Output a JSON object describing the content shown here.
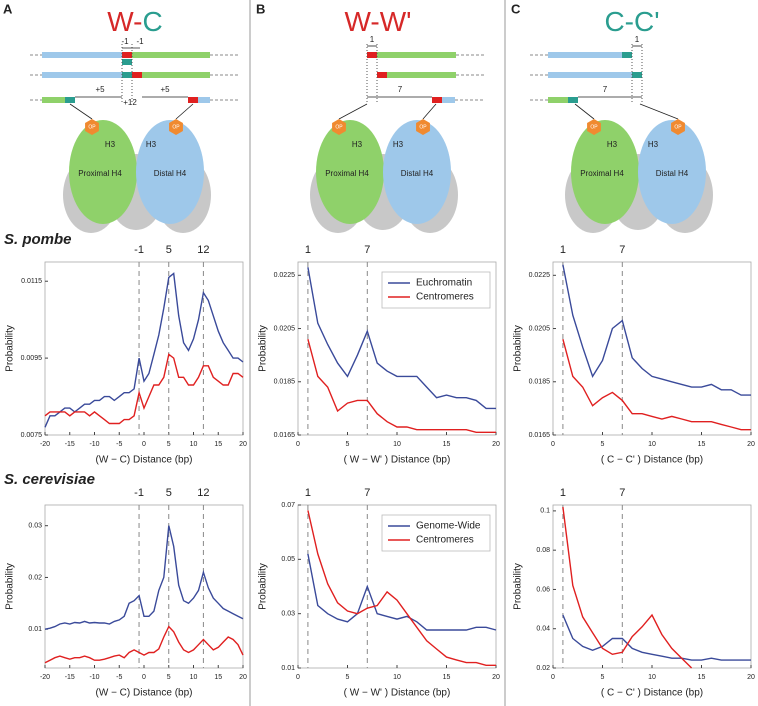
{
  "panels": [
    {
      "letter": "A",
      "title": [
        {
          "text": "W",
          "color": "#d62828"
        },
        {
          "text": "-",
          "color": "#d62828"
        },
        {
          "text": "C",
          "color": "#2a9d8f"
        }
      ],
      "diagram_labels": [
        "-1",
        "-1",
        "+5",
        "+12",
        "+5",
        "OP",
        "OP",
        "H3",
        "H3",
        "Proximal H4",
        "Distal H4"
      ]
    },
    {
      "letter": "B",
      "title": [
        {
          "text": "W-W'",
          "color": "#d62828"
        }
      ],
      "diagram_labels": [
        "1",
        "7",
        "OP",
        "OP",
        "H3",
        "H3",
        "Proximal H4",
        "Distal H4"
      ]
    },
    {
      "letter": "C",
      "title": [
        {
          "text": "C-C'",
          "color": "#2a9d8f"
        }
      ],
      "diagram_labels": [
        "1",
        "7",
        "OP",
        "OP",
        "H3",
        "H3",
        "Proximal H4",
        "Distal H4"
      ]
    }
  ],
  "organisms": [
    "S. pombe",
    "S. cerevisiae"
  ],
  "chart_data": [
    {
      "type": "line",
      "x": [
        -20,
        -19,
        -18,
        -17,
        -16,
        -15,
        -14,
        -13,
        -12,
        -11,
        -10,
        -9,
        -8,
        -7,
        -6,
        -5,
        -4,
        -3,
        -2,
        -1,
        0,
        1,
        2,
        3,
        4,
        5,
        6,
        7,
        8,
        9,
        10,
        11,
        12,
        13,
        14,
        15,
        16,
        17,
        18,
        19,
        20
      ],
      "series": [
        {
          "color": "#3a4a9a",
          "values": [
            0.0077,
            0.008,
            0.008,
            0.0081,
            0.0082,
            0.0082,
            0.0081,
            0.0082,
            0.0083,
            0.0083,
            0.0084,
            0.0084,
            0.0085,
            0.0085,
            0.0084,
            0.0085,
            0.0086,
            0.0086,
            0.0087,
            0.0095,
            0.0089,
            0.0091,
            0.0096,
            0.0101,
            0.0108,
            0.0116,
            0.0117,
            0.0106,
            0.0099,
            0.0097,
            0.01,
            0.0105,
            0.0112,
            0.011,
            0.0106,
            0.0102,
            0.0099,
            0.0097,
            0.0095,
            0.0095,
            0.0094
          ]
        },
        {
          "color": "#e02020",
          "values": [
            0.008,
            0.0081,
            0.0081,
            0.0081,
            0.0081,
            0.008,
            0.0081,
            0.0081,
            0.0081,
            0.008,
            0.0081,
            0.008,
            0.0079,
            0.0078,
            0.0078,
            0.0078,
            0.0079,
            0.0079,
            0.008,
            0.0086,
            0.0082,
            0.0085,
            0.0088,
            0.0088,
            0.009,
            0.0096,
            0.0095,
            0.009,
            0.009,
            0.0088,
            0.0088,
            0.009,
            0.0093,
            0.0093,
            0.009,
            0.0089,
            0.0088,
            0.0088,
            0.0091,
            0.0091,
            0.009
          ]
        }
      ],
      "xlim": [
        -20,
        20
      ],
      "xticks": [
        -20,
        -15,
        -10,
        -5,
        0,
        5,
        10,
        15,
        20
      ],
      "ylim": [
        0.0075,
        0.012
      ],
      "yticks": [
        0.0075,
        0.0095,
        0.0115
      ],
      "xlabel": "(W − C) Distance (bp)",
      "ylabel": "Probability",
      "markers": [
        -1,
        5,
        12
      ]
    },
    {
      "type": "line",
      "x": [
        1,
        2,
        3,
        4,
        5,
        6,
        7,
        8,
        9,
        10,
        11,
        12,
        13,
        14,
        15,
        16,
        17,
        18,
        19,
        20
      ],
      "series": [
        {
          "name": "Euchromatin",
          "color": "#3a4a9a",
          "values": [
            0.0228,
            0.0207,
            0.0199,
            0.0192,
            0.0187,
            0.0195,
            0.0204,
            0.0192,
            0.0189,
            0.0187,
            0.0187,
            0.0187,
            0.0183,
            0.0179,
            0.018,
            0.0179,
            0.0179,
            0.0178,
            0.0175,
            0.0175
          ]
        },
        {
          "name": "Centromeres",
          "color": "#e02020",
          "values": [
            0.0201,
            0.0187,
            0.0183,
            0.0174,
            0.0177,
            0.0178,
            0.0178,
            0.0173,
            0.017,
            0.0168,
            0.0168,
            0.0167,
            0.0167,
            0.0167,
            0.0167,
            0.0167,
            0.0167,
            0.0166,
            0.0166,
            0.0166
          ]
        }
      ],
      "xlim": [
        0,
        20
      ],
      "xticks": [
        0,
        5,
        10,
        15,
        20
      ],
      "ylim": [
        0.0165,
        0.023
      ],
      "yticks": [
        0.0165,
        0.0185,
        0.0205,
        0.0225
      ],
      "xlabel": "( W − W' ) Distance (bp)",
      "ylabel": "Probability",
      "markers": [
        1,
        7
      ],
      "legend": "upper right"
    },
    {
      "type": "line",
      "x": [
        1,
        2,
        3,
        4,
        5,
        6,
        7,
        8,
        9,
        10,
        11,
        12,
        13,
        14,
        15,
        16,
        17,
        18,
        19,
        20
      ],
      "series": [
        {
          "color": "#3a4a9a",
          "values": [
            0.0229,
            0.021,
            0.0198,
            0.0187,
            0.0193,
            0.0205,
            0.0208,
            0.0194,
            0.019,
            0.0187,
            0.0186,
            0.0185,
            0.0184,
            0.0183,
            0.0183,
            0.0184,
            0.0182,
            0.0182,
            0.018,
            0.018
          ]
        },
        {
          "color": "#e02020",
          "values": [
            0.0201,
            0.0187,
            0.0183,
            0.0176,
            0.0179,
            0.0181,
            0.0178,
            0.0173,
            0.0173,
            0.0172,
            0.0171,
            0.0172,
            0.0171,
            0.017,
            0.017,
            0.017,
            0.0169,
            0.0168,
            0.0167,
            0.0167
          ]
        }
      ],
      "xlim": [
        0,
        20
      ],
      "xticks": [
        0,
        5,
        10,
        15,
        20
      ],
      "ylim": [
        0.0165,
        0.023
      ],
      "yticks": [
        0.0165,
        0.0185,
        0.0205,
        0.0225
      ],
      "xlabel": "( C − C' ) Distance (bp)",
      "ylabel": "Probability",
      "markers": [
        1,
        7
      ]
    },
    {
      "type": "line",
      "x": [
        -20,
        -19,
        -18,
        -17,
        -16,
        -15,
        -14,
        -13,
        -12,
        -11,
        -10,
        -9,
        -8,
        -7,
        -6,
        -5,
        -4,
        -3,
        -2,
        -1,
        0,
        1,
        2,
        3,
        4,
        5,
        6,
        7,
        8,
        9,
        10,
        11,
        12,
        13,
        14,
        15,
        16,
        17,
        18,
        19,
        20
      ],
      "series": [
        {
          "color": "#3a4a9a",
          "values": [
            0.01,
            0.0102,
            0.0105,
            0.011,
            0.0112,
            0.011,
            0.0113,
            0.0112,
            0.0115,
            0.0112,
            0.0113,
            0.0112,
            0.0112,
            0.011,
            0.0115,
            0.0118,
            0.0125,
            0.015,
            0.0155,
            0.0165,
            0.0125,
            0.0125,
            0.0135,
            0.0175,
            0.02,
            0.03,
            0.026,
            0.0185,
            0.0155,
            0.015,
            0.016,
            0.0175,
            0.021,
            0.018,
            0.016,
            0.015,
            0.014,
            0.0135,
            0.013,
            0.0125,
            0.012
          ]
        },
        {
          "color": "#e02020",
          "values": [
            0.0035,
            0.004,
            0.0045,
            0.0048,
            0.0045,
            0.0042,
            0.0045,
            0.0045,
            0.0048,
            0.0045,
            0.004,
            0.004,
            0.0042,
            0.0045,
            0.0048,
            0.005,
            0.0045,
            0.0055,
            0.006,
            0.0055,
            0.005,
            0.0055,
            0.0055,
            0.0062,
            0.0085,
            0.0105,
            0.0095,
            0.0075,
            0.006,
            0.0055,
            0.006,
            0.007,
            0.008,
            0.007,
            0.006,
            0.0065,
            0.0075,
            0.0085,
            0.008,
            0.007,
            0.005
          ]
        }
      ],
      "xlim": [
        -20,
        20
      ],
      "xticks": [
        -20,
        -15,
        -10,
        -5,
        0,
        5,
        10,
        15,
        20
      ],
      "ylim": [
        0.0025,
        0.034
      ],
      "yticks": [
        0.01,
        0.02,
        0.03
      ],
      "xlabel": "(W − C) Distance (bp)",
      "ylabel": "Probability",
      "markers": [
        -1,
        5,
        12
      ]
    },
    {
      "type": "line",
      "x": [
        1,
        2,
        3,
        4,
        5,
        6,
        7,
        8,
        9,
        10,
        11,
        12,
        13,
        14,
        15,
        16,
        17,
        18,
        19,
        20
      ],
      "series": [
        {
          "name": "Genome-Wide",
          "color": "#3a4a9a",
          "values": [
            0.052,
            0.033,
            0.03,
            0.028,
            0.027,
            0.03,
            0.04,
            0.03,
            0.029,
            0.028,
            0.029,
            0.027,
            0.024,
            0.024,
            0.024,
            0.024,
            0.024,
            0.025,
            0.025,
            0.024
          ]
        },
        {
          "name": "Centromeres",
          "color": "#e02020",
          "values": [
            0.068,
            0.052,
            0.041,
            0.034,
            0.031,
            0.03,
            0.032,
            0.033,
            0.038,
            0.035,
            0.03,
            0.025,
            0.02,
            0.017,
            0.014,
            0.013,
            0.012,
            0.012,
            0.011,
            0.011
          ]
        }
      ],
      "xlim": [
        0,
        20
      ],
      "xticks": [
        0,
        5,
        10,
        15,
        20
      ],
      "ylim": [
        0.01,
        0.07
      ],
      "yticks": [
        0.01,
        0.03,
        0.05,
        0.07
      ],
      "xlabel": "( W − W' ) Distance (bp)",
      "ylabel": "Probability",
      "markers": [
        1,
        7
      ],
      "legend": "upper right"
    },
    {
      "type": "line",
      "x": [
        1,
        2,
        3,
        4,
        5,
        6,
        7,
        8,
        9,
        10,
        11,
        12,
        13,
        14,
        15,
        16,
        17,
        18,
        19,
        20
      ],
      "series": [
        {
          "color": "#3a4a9a",
          "values": [
            0.047,
            0.035,
            0.031,
            0.029,
            0.031,
            0.035,
            0.035,
            0.03,
            0.028,
            0.027,
            0.026,
            0.025,
            0.025,
            0.024,
            0.024,
            0.025,
            0.024,
            0.024,
            0.024,
            0.024
          ]
        },
        {
          "color": "#e02020",
          "values": [
            0.102,
            0.062,
            0.046,
            0.038,
            0.03,
            0.027,
            0.028,
            0.036,
            0.041,
            0.047,
            0.037,
            0.03,
            0.025,
            0.02,
            null,
            null,
            null,
            null,
            null,
            null
          ]
        }
      ],
      "xlim": [
        0,
        20
      ],
      "xticks": [
        0,
        5,
        10,
        15,
        20
      ],
      "ylim": [
        0.02,
        0.103
      ],
      "yticks": [
        0.02,
        0.04,
        0.06,
        0.08,
        0.1
      ],
      "xlabel": "( C − C' ) Distance (bp)",
      "ylabel": "Probability",
      "markers": [
        1,
        7
      ]
    }
  ]
}
